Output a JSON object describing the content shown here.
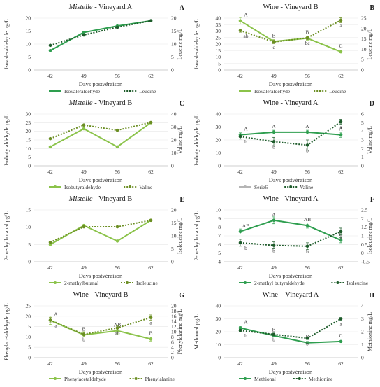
{
  "panels": [
    {
      "letter": "A",
      "title": "Mistelle - Vineyard A",
      "title_italic": "Mistelle",
      "title_rest": " - Vineyard A",
      "xlabel": "Days postvéraison",
      "ylabel_left": "Isovaleraldehyde µg/L",
      "ylabel_right": "Leucine mg/L",
      "categories": [
        "42",
        "49",
        "56",
        "62"
      ],
      "ylim_left": [
        0,
        20
      ],
      "yticks_left": [
        0,
        5,
        10,
        15,
        20
      ],
      "ylim_right": [
        0,
        20
      ],
      "yticks_right": [
        0,
        5,
        10,
        15,
        20
      ],
      "series": [
        {
          "name": "Isovaleraldehyde",
          "axis": "left",
          "style": "solid",
          "color": "#2e9e4f",
          "values": [
            7.5,
            14.5,
            17.0,
            19.0
          ],
          "errors": [],
          "letters": []
        },
        {
          "name": "Leucine",
          "axis": "right",
          "style": "dotted",
          "color": "#1d5b2a",
          "values": [
            9.5,
            13.5,
            16.5,
            19.0
          ],
          "errors": [],
          "letters": []
        }
      ]
    },
    {
      "letter": "B",
      "title": "Wine - Vineyard B",
      "title_italic": "",
      "title_rest": "Wine - Vineyard B",
      "xlabel": "Days postvéraison",
      "ylabel_left": "Isovaleraldehyde µg/L",
      "ylabel_right": "Leucine mg/L",
      "categories": [
        "42",
        "49",
        "56",
        "62"
      ],
      "ylim_left": [
        0,
        40
      ],
      "yticks_left": [
        0,
        5,
        10,
        15,
        20,
        25,
        30,
        35,
        40
      ],
      "ylim_right": [
        0,
        25
      ],
      "yticks_right": [
        0,
        5,
        10,
        15,
        20,
        25
      ],
      "series": [
        {
          "name": "Isovaleraldehyde",
          "axis": "left",
          "style": "solid",
          "color": "#8bc34a",
          "values": [
            38.0,
            22.0,
            24.5,
            14.0
          ],
          "errors": [
            2.5,
            1.5,
            1.5,
            0.8
          ],
          "letters": [
            "A",
            "B",
            "B",
            "C"
          ]
        },
        {
          "name": "Leucine",
          "axis": "right",
          "style": "dotted",
          "color": "#6b8e23",
          "values": [
            19.0,
            13.5,
            15.5,
            24.0
          ],
          "errors": [
            0.8,
            0.8,
            0.8,
            1.2
          ],
          "letters": [
            "ab",
            "c",
            "bc",
            "a"
          ]
        }
      ]
    },
    {
      "letter": "C",
      "title": "Mistelle - Vineyard B",
      "title_italic": "Mistelle",
      "title_rest": " - Vineyard B",
      "xlabel": "Days postvéraison",
      "ylabel_left": "Isobutyraldehyde µg/L",
      "ylabel_right": "Valine mg/L",
      "categories": [
        "42",
        "49",
        "56",
        "62"
      ],
      "ylim_left": [
        0,
        30
      ],
      "yticks_left": [
        0,
        5,
        10,
        15,
        20,
        25,
        30
      ],
      "ylim_right": [
        0,
        40
      ],
      "yticks_right": [
        0,
        10,
        20,
        30,
        40
      ],
      "series": [
        {
          "name": "Isobutyraldehyde",
          "axis": "left",
          "style": "solid",
          "color": "#8bc34a",
          "values": [
            11.0,
            21.5,
            11.0,
            25.0
          ],
          "errors": [],
          "letters": []
        },
        {
          "name": "Valine",
          "axis": "right",
          "style": "dotted",
          "color": "#6b8e23",
          "values": [
            21.0,
            31.5,
            27.5,
            33.5
          ],
          "errors": [],
          "letters": []
        }
      ]
    },
    {
      "letter": "D",
      "title": "Wine - Vineyard A",
      "title_italic": "",
      "title_rest": "Wine - Vineyard A",
      "xlabel": "Days postvéraison",
      "ylabel_left": "Isobutyraldehyde µg/L",
      "ylabel_right": "Valine mg/L",
      "categories": [
        "42",
        "49",
        "56",
        "62"
      ],
      "ylim_left": [
        0,
        40
      ],
      "yticks_left": [
        0,
        10,
        20,
        30,
        40
      ],
      "ylim_right": [
        0,
        6
      ],
      "yticks_right": [
        0,
        1,
        2,
        3,
        4,
        5,
        6
      ],
      "series": [
        {
          "name": "Serie6",
          "axis": "left",
          "style": "solid",
          "color": "#2e9e4f",
          "legend_color": "#b5b5b5",
          "values": [
            24.0,
            26.0,
            26.0,
            24.0
          ],
          "errors": [
            1.5,
            1.5,
            1.5,
            2.0
          ],
          "letters": [
            "A",
            "A",
            "A",
            "A"
          ]
        },
        {
          "name": "Valine",
          "axis": "right",
          "style": "dotted",
          "color": "#1d5b2a",
          "values": [
            3.4,
            2.8,
            2.4,
            5.1
          ],
          "errors": [
            0.3,
            0.5,
            0.6,
            0.3
          ],
          "letters": [
            "b",
            "b",
            "b",
            "a"
          ]
        }
      ]
    },
    {
      "letter": "E",
      "title": "Mistelle - Vineyard B",
      "title_italic": "Mistelle",
      "title_rest": " - Vineyard B",
      "xlabel": "Days postvéraison",
      "ylabel_left": "2-methylbutanal µg/L",
      "ylabel_right": "Isoleucine mg/L",
      "categories": [
        "42",
        "49",
        "56",
        "62"
      ],
      "ylim_left": [
        0,
        15
      ],
      "yticks_left": [
        0,
        5,
        10,
        15
      ],
      "ylim_right": [
        0,
        20
      ],
      "yticks_right": [
        0,
        5,
        10,
        15,
        20
      ],
      "series": [
        {
          "name": "2-methylbutanal",
          "axis": "left",
          "style": "solid",
          "color": "#8bc34a",
          "values": [
            5.0,
            10.5,
            6.0,
            12.0
          ],
          "errors": [],
          "letters": []
        },
        {
          "name": "Isoleucine",
          "axis": "right",
          "style": "dotted",
          "color": "#6b8e23",
          "values": [
            7.5,
            13.5,
            13.5,
            16.0
          ],
          "errors": [],
          "letters": []
        }
      ]
    },
    {
      "letter": "F",
      "title": "Wine - Vineyard A",
      "title_italic": "",
      "title_rest": "Wine - Vineyard A",
      "xlabel": "Days postvéraison",
      "ylabel_left": "2-methylbutanal µg/L",
      "ylabel_right": "Isoleucine mg/L",
      "categories": [
        "42",
        "49",
        "56",
        "62"
      ],
      "ylim_left": [
        4,
        10
      ],
      "yticks_left": [
        4,
        5,
        6,
        7,
        8,
        9,
        10
      ],
      "ylim_right": [
        -0.5,
        2.5
      ],
      "yticks_right": [
        -0.5,
        0,
        0.5,
        1,
        1.5,
        2,
        2.5
      ],
      "series": [
        {
          "name": "2-methyl butyraldehyde",
          "axis": "left",
          "style": "solid",
          "color": "#2e9e4f",
          "values": [
            7.5,
            8.8,
            8.2,
            6.5
          ],
          "errors": [
            0.3,
            0.4,
            0.3,
            0.3
          ],
          "letters": [
            "AB",
            "A",
            "AB",
            "B"
          ]
        },
        {
          "name": "Isoleucine",
          "axis": "right",
          "style": "dotted",
          "color": "#1d5b2a",
          "values": [
            0.6,
            0.45,
            0.4,
            1.25
          ],
          "errors": [
            0.2,
            0.2,
            0.2,
            0.2
          ],
          "letters": [
            "b",
            "b",
            "b",
            "a"
          ]
        }
      ]
    },
    {
      "letter": "G",
      "title": "Wine - Vineyard B",
      "title_italic": "",
      "title_rest": "Wine - Vineyard B",
      "xlabel": "Days postvéraison",
      "ylabel_left": "Phenylacetaldehyde µg/L",
      "ylabel_right": "Phenylalanine mg/L",
      "categories": [
        "42",
        "49",
        "56",
        "62"
      ],
      "ylim_left": [
        0,
        25
      ],
      "yticks_left": [
        0,
        5,
        10,
        15,
        20,
        25
      ],
      "ylim_right": [
        0,
        20
      ],
      "yticks_right": [
        0,
        2,
        4,
        6,
        8,
        10,
        12,
        14,
        16,
        18,
        20
      ],
      "series": [
        {
          "name": "Phenylacetaldehyde",
          "axis": "left",
          "style": "solid",
          "color": "#8bc34a",
          "values": [
            18.0,
            11.0,
            13.0,
            9.0
          ],
          "errors": [
            2.0,
            1.0,
            1.5,
            1.0
          ],
          "letters": [
            "A",
            "B",
            "AB",
            "B"
          ]
        },
        {
          "name": "Phenylalanine",
          "axis": "right",
          "style": "dotted",
          "color": "#6b8e23",
          "values": [
            14.5,
            9.0,
            11.5,
            15.5
          ],
          "errors": [
            1.0,
            1.0,
            0.8,
            1.0
          ],
          "letters": [
            "a",
            "b",
            "ab",
            "a"
          ]
        }
      ]
    },
    {
      "letter": "H",
      "title": "Wine – Vineyard A",
      "title_italic": "",
      "title_rest": "Wine – Vineyard A",
      "xlabel": "Days postvéraison",
      "ylabel_left": "Methional µg/L",
      "ylabel_right": "Methionine mg/L",
      "categories": [
        "42",
        "49",
        "56",
        "62"
      ],
      "ylim_left": [
        0,
        40
      ],
      "yticks_left": [
        0,
        10,
        20,
        30,
        40
      ],
      "ylim_right": [
        0,
        4
      ],
      "yticks_right": [
        0,
        1,
        2,
        3,
        4
      ],
      "series": [
        {
          "name": "Methional",
          "axis": "left",
          "style": "solid",
          "color": "#2e9e4f",
          "values": [
            23.0,
            17.0,
            11.5,
            12.5
          ],
          "errors": [
            1.0,
            1.0,
            1.0,
            0.5
          ],
          "letters": [
            "A",
            "B",
            "B",
            "C"
          ]
        },
        {
          "name": "Methionine",
          "axis": "right",
          "style": "dotted",
          "color": "#1d5b2a",
          "values": [
            2.1,
            1.8,
            1.5,
            3.0
          ],
          "errors": [
            0.1,
            0.1,
            0.1,
            0.1
          ],
          "letters": [
            "b",
            "b",
            "b",
            "a"
          ]
        }
      ]
    }
  ],
  "chart_data": [
    {
      "type": "line",
      "title": "Mistelle - Vineyard A",
      "xlabel": "Days postvéraison",
      "ylabel": "Isovaleraldehyde µg/L",
      "y2label": "Leucine mg/L",
      "categories": [
        "42",
        "49",
        "56",
        "62"
      ],
      "ylim": [
        0,
        20
      ],
      "y2lim": [
        0,
        20
      ],
      "series": [
        {
          "name": "Isovaleraldehyde",
          "values": [
            7.5,
            14.5,
            17.0,
            19.0
          ]
        },
        {
          "name": "Leucine",
          "values": [
            9.5,
            13.5,
            16.5,
            19.0
          ]
        }
      ]
    },
    {
      "type": "line",
      "title": "Wine - Vineyard B",
      "xlabel": "Days postvéraison",
      "ylabel": "Isovaleraldehyde µg/L",
      "y2label": "Leucine mg/L",
      "categories": [
        "42",
        "49",
        "56",
        "62"
      ],
      "ylim": [
        0,
        40
      ],
      "y2lim": [
        0,
        25
      ],
      "series": [
        {
          "name": "Isovaleraldehyde",
          "values": [
            38.0,
            22.0,
            24.5,
            14.0
          ]
        },
        {
          "name": "Leucine",
          "values": [
            19.0,
            13.5,
            15.5,
            24.0
          ]
        }
      ]
    },
    {
      "type": "line",
      "title": "Mistelle - Vineyard B",
      "xlabel": "Days postvéraison",
      "ylabel": "Isobutyraldehyde µg/L",
      "y2label": "Valine mg/L",
      "categories": [
        "42",
        "49",
        "56",
        "62"
      ],
      "ylim": [
        0,
        30
      ],
      "y2lim": [
        0,
        40
      ],
      "series": [
        {
          "name": "Isobutyraldehyde",
          "values": [
            11.0,
            21.5,
            11.0,
            25.0
          ]
        },
        {
          "name": "Valine",
          "values": [
            21.0,
            31.5,
            27.5,
            33.5
          ]
        }
      ]
    },
    {
      "type": "line",
      "title": "Wine - Vineyard A",
      "xlabel": "Days postvéraison",
      "ylabel": "Isobutyraldehyde µg/L",
      "y2label": "Valine mg/L",
      "categories": [
        "42",
        "49",
        "56",
        "62"
      ],
      "ylim": [
        0,
        40
      ],
      "y2lim": [
        0,
        6
      ],
      "series": [
        {
          "name": "Serie6",
          "values": [
            24.0,
            26.0,
            26.0,
            24.0
          ]
        },
        {
          "name": "Valine",
          "values": [
            3.4,
            2.8,
            2.4,
            5.1
          ]
        }
      ]
    },
    {
      "type": "line",
      "title": "Mistelle - Vineyard B",
      "xlabel": "Days postvéraison",
      "ylabel": "2-methylbutanal µg/L",
      "y2label": "Isoleucine mg/L",
      "categories": [
        "42",
        "49",
        "56",
        "62"
      ],
      "ylim": [
        0,
        15
      ],
      "y2lim": [
        0,
        20
      ],
      "series": [
        {
          "name": "2-methylbutanal",
          "values": [
            5.0,
            10.5,
            6.0,
            12.0
          ]
        },
        {
          "name": "Isoleucine",
          "values": [
            7.5,
            13.5,
            13.5,
            16.0
          ]
        }
      ]
    },
    {
      "type": "line",
      "title": "Wine - Vineyard A",
      "xlabel": "Days postvéraison",
      "ylabel": "2-methylbutanal µg/L",
      "y2label": "Isoleucine mg/L",
      "categories": [
        "42",
        "49",
        "56",
        "62"
      ],
      "ylim": [
        4,
        10
      ],
      "y2lim": [
        -0.5,
        2.5
      ],
      "series": [
        {
          "name": "2-methyl butyraldehyde",
          "values": [
            7.5,
            8.8,
            8.2,
            6.5
          ]
        },
        {
          "name": "Isoleucine",
          "values": [
            0.6,
            0.45,
            0.4,
            1.25
          ]
        }
      ]
    },
    {
      "type": "line",
      "title": "Wine - Vineyard B",
      "xlabel": "Days postvéraison",
      "ylabel": "Phenylacetaldehyde µg/L",
      "y2label": "Phenylalanine mg/L",
      "categories": [
        "42",
        "49",
        "56",
        "62"
      ],
      "ylim": [
        0,
        25
      ],
      "y2lim": [
        0,
        20
      ],
      "series": [
        {
          "name": "Phenylacetaldehyde",
          "values": [
            18.0,
            11.0,
            13.0,
            9.0
          ]
        },
        {
          "name": "Phenylalanine",
          "values": [
            14.5,
            9.0,
            11.5,
            15.5
          ]
        }
      ]
    },
    {
      "type": "line",
      "title": "Wine – Vineyard A",
      "xlabel": "Days postvéraison",
      "ylabel": "Methional µg/L",
      "y2label": "Methionine mg/L",
      "categories": [
        "42",
        "49",
        "56",
        "62"
      ],
      "ylim": [
        0,
        40
      ],
      "y2lim": [
        0,
        4
      ],
      "series": [
        {
          "name": "Methional",
          "values": [
            23.0,
            17.0,
            11.5,
            12.5
          ]
        },
        {
          "name": "Methionine",
          "values": [
            2.1,
            1.8,
            1.5,
            3.0
          ]
        }
      ]
    }
  ]
}
